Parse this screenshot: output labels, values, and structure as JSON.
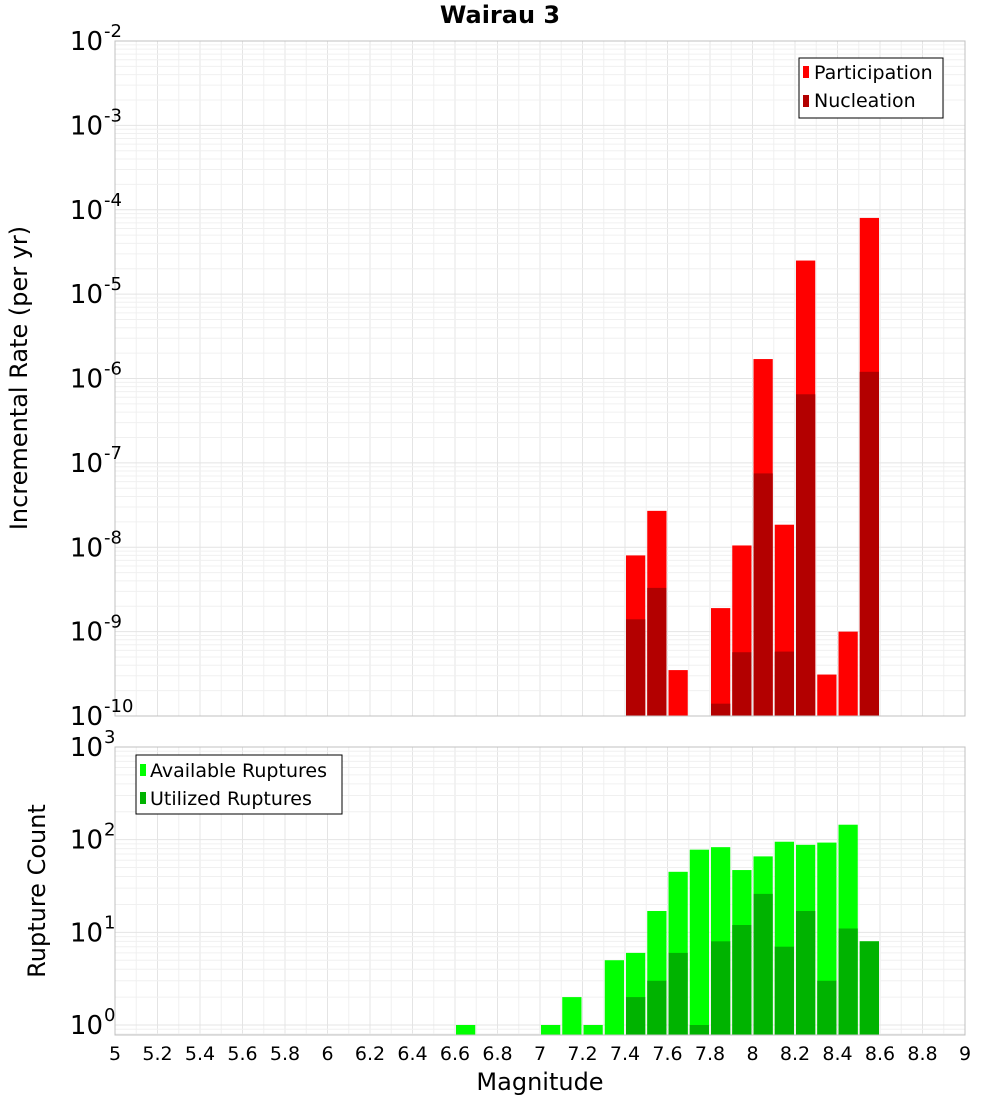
{
  "chart_data": [
    {
      "type": "bar",
      "title": "Wairau 3",
      "xlabel": "",
      "ylabel": "Incremental Rate (per yr)",
      "yscale": "log",
      "ylim": [
        1e-10,
        0.01
      ],
      "xlim": [
        5,
        9
      ],
      "bin_width": 0.1,
      "legend": {
        "placement": "top-right"
      },
      "grid": true,
      "yticks": [
        {
          "base": "10",
          "exp": "-10",
          "value": 1e-10
        },
        {
          "base": "10",
          "exp": "-9",
          "value": 1e-09
        },
        {
          "base": "10",
          "exp": "-8",
          "value": 1e-08
        },
        {
          "base": "10",
          "exp": "-7",
          "value": 1e-07
        },
        {
          "base": "10",
          "exp": "-6",
          "value": 1e-06
        },
        {
          "base": "10",
          "exp": "-5",
          "value": 1e-05
        },
        {
          "base": "10",
          "exp": "-4",
          "value": 0.0001
        },
        {
          "base": "10",
          "exp": "-3",
          "value": 0.001
        },
        {
          "base": "10",
          "exp": "-2",
          "value": 0.01
        }
      ],
      "series": [
        {
          "name": "Participation",
          "color": "#ff0000",
          "x": [
            7.45,
            7.55,
            7.65,
            7.85,
            7.95,
            8.05,
            8.15,
            8.25,
            8.35,
            8.45,
            8.55
          ],
          "values": [
            8e-09,
            2.7e-08,
            3.5e-10,
            1.9e-09,
            1.05e-08,
            1.7e-06,
            1.85e-08,
            2.5e-05,
            3.1e-10,
            1e-09,
            8e-05
          ]
        },
        {
          "name": "Nucleation",
          "color": "#b30000",
          "x": [
            7.45,
            7.55,
            7.85,
            7.95,
            8.05,
            8.15,
            8.25,
            8.55
          ],
          "values": [
            1.4e-09,
            3.3e-09,
            1.4e-10,
            5.7e-10,
            7.5e-08,
            5.8e-10,
            6.5e-07,
            1.2e-06
          ]
        }
      ]
    },
    {
      "type": "bar",
      "title": "",
      "xlabel": "Magnitude",
      "ylabel": "Rupture Count",
      "yscale": "log",
      "ylim": [
        0.78,
        1000
      ],
      "xlim": [
        5,
        9
      ],
      "bin_width": 0.1,
      "legend": {
        "placement": "top-left"
      },
      "grid": true,
      "yticks": [
        {
          "base": "10",
          "exp": "0",
          "value": 1
        },
        {
          "base": "10",
          "exp": "1",
          "value": 10
        },
        {
          "base": "10",
          "exp": "2",
          "value": 100
        },
        {
          "base": "10",
          "exp": "3",
          "value": 1000
        }
      ],
      "xticks": [
        "5",
        "5.2",
        "5.4",
        "5.6",
        "5.8",
        "6",
        "6.2",
        "6.4",
        "6.6",
        "6.8",
        "7",
        "7.2",
        "7.4",
        "7.6",
        "7.8",
        "8",
        "8.2",
        "8.4",
        "8.6",
        "8.8",
        "9"
      ],
      "series": [
        {
          "name": "Available Ruptures",
          "color": "#00ff00",
          "x": [
            6.65,
            7.05,
            7.15,
            7.25,
            7.35,
            7.45,
            7.55,
            7.65,
            7.75,
            7.85,
            7.95,
            8.05,
            8.15,
            8.25,
            8.35,
            8.45,
            8.55
          ],
          "values": [
            1,
            1,
            2,
            1,
            5,
            6,
            17,
            45,
            78,
            83,
            47,
            66,
            95,
            88,
            93,
            145,
            8
          ]
        },
        {
          "name": "Utilized Ruptures",
          "color": "#00b300",
          "x": [
            7.45,
            7.55,
            7.65,
            7.75,
            7.85,
            7.95,
            8.05,
            8.15,
            8.25,
            8.35,
            8.45,
            8.55
          ],
          "values": [
            2,
            3,
            6,
            1,
            8,
            12,
            26,
            7,
            17,
            3,
            11,
            8
          ]
        }
      ]
    }
  ]
}
